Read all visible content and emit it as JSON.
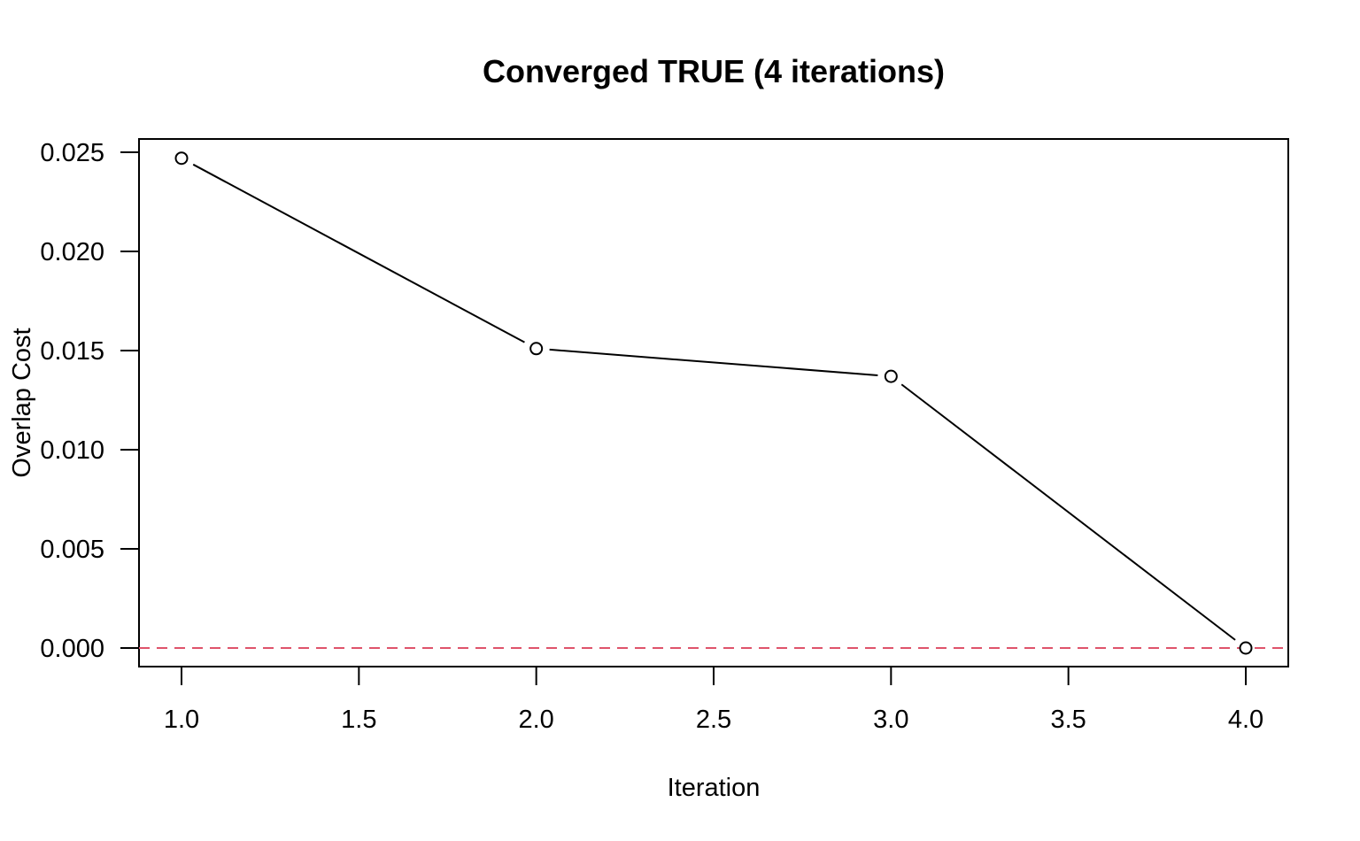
{
  "chart_data": {
    "type": "line",
    "title": "Converged TRUE (4 iterations)",
    "xlabel": "Iteration",
    "ylabel": "Overlap Cost",
    "xlim": [
      1.0,
      4.0
    ],
    "ylim": [
      0.0,
      0.025
    ],
    "xticks": [
      "1.0",
      "1.5",
      "2.0",
      "2.5",
      "3.0",
      "3.5",
      "4.0"
    ],
    "yticks": [
      "0.000",
      "0.005",
      "0.010",
      "0.015",
      "0.020",
      "0.025"
    ],
    "series": [
      {
        "x": [
          1,
          2,
          3,
          4
        ],
        "y": [
          0.0247,
          0.0151,
          0.0137,
          0.0
        ]
      }
    ],
    "reference_line": {
      "y": 0.0,
      "style": "dashed",
      "color": "#DF536B"
    },
    "grid": false,
    "legend": "none",
    "line_color": "#000000"
  }
}
